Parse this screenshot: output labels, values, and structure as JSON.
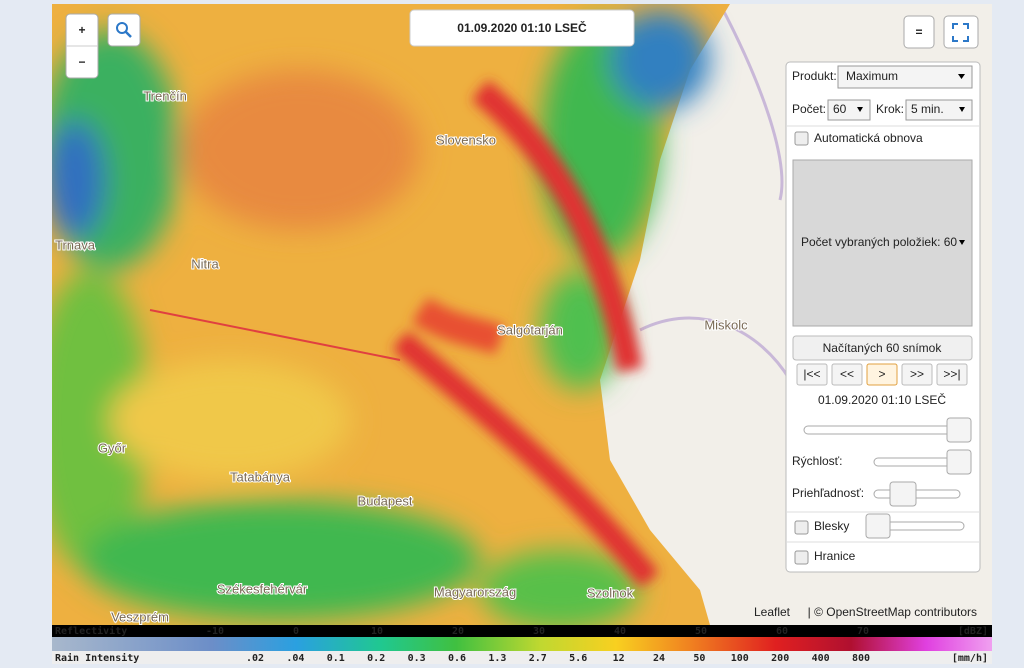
{
  "map": {
    "timestamp": "01.09.2020 01:10 LSEČ",
    "zoom_in": "+",
    "zoom_out": "−",
    "layers": "=",
    "places": [
      "Trenčín",
      "Slovensko",
      "Trnava",
      "Nitra",
      "Salgótarján",
      "Miskolc",
      "Győr",
      "Tatabánya",
      "Budapest",
      "Székesfehérvár",
      "Magyarország",
      "Szolnok",
      "Veszprém"
    ],
    "attribution_link": "Leaflet",
    "attribution_text": "| © OpenStreetMap contributors"
  },
  "panel": {
    "product_label": "Produkt:",
    "product": "Maximum",
    "count_label": "Počet:",
    "count": "60",
    "step_label": "Krok:",
    "step": "5 min.",
    "auto_refresh": "Automatická obnova",
    "selected": "Počet vybraných položiek: 60",
    "loaded": "Načítaných 60 snímok",
    "nav": [
      "|<<",
      "<<",
      ">",
      ">>",
      ">>|"
    ],
    "time": "01.09.2020 01:10 LSEČ",
    "speed": "Rýchlosť:",
    "opacity": "Priehľadnosť:",
    "lightning": "Blesky",
    "borders": "Hranice"
  },
  "legend": {
    "reflectivity": {
      "label": "Reflectivity",
      "ticks": [
        "-10",
        "0",
        "10",
        "20",
        "30",
        "40",
        "50",
        "60",
        "70"
      ],
      "unit": "[dBZ]"
    },
    "rain": {
      "label": "Rain Intensity",
      "ticks": [
        ".02",
        ".04",
        "0.1",
        "0.2",
        "0.3",
        "0.6",
        "1.3",
        "2.7",
        "5.6",
        "12",
        "24",
        "50",
        "100",
        "200",
        "400",
        "800"
      ],
      "unit": "[mm/h]"
    }
  }
}
